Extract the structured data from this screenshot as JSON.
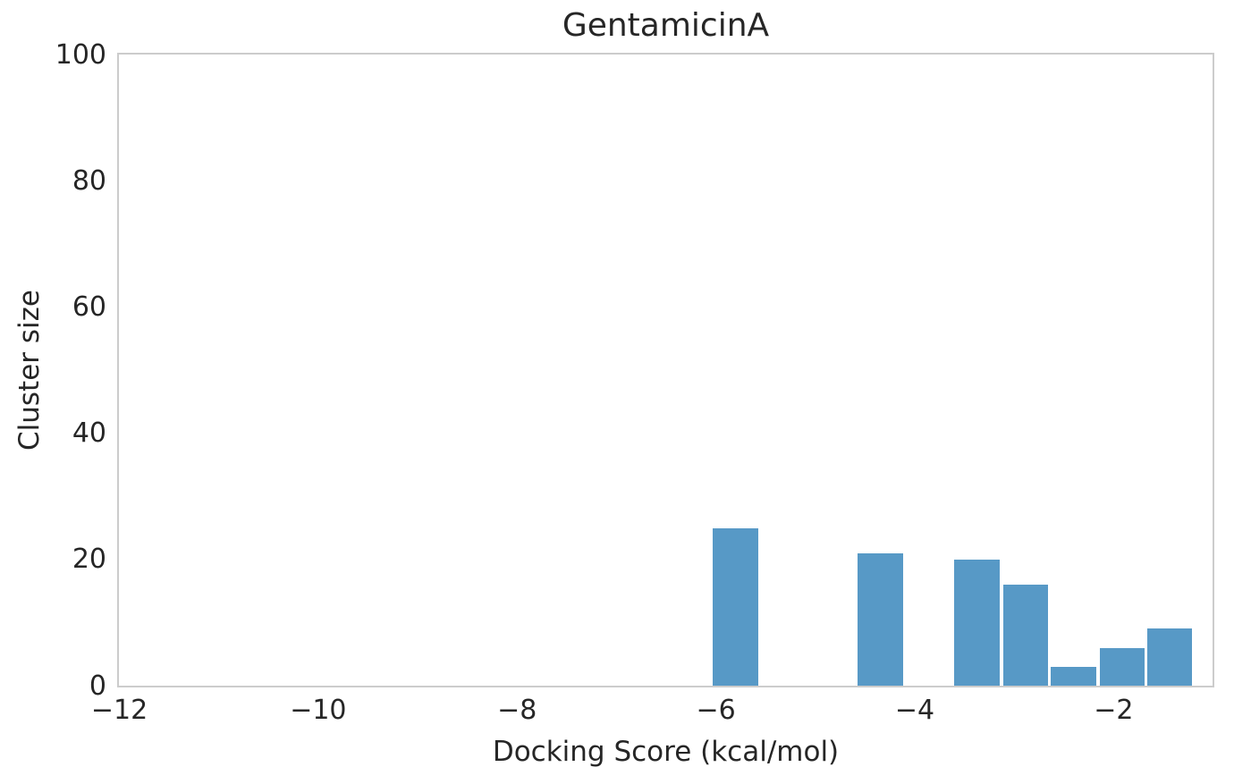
{
  "figure": {
    "title": "GentamicinA",
    "xlabel": "Docking Score (kcal/mol)",
    "ylabel": "Cluster size"
  },
  "chart_data": {
    "type": "bar",
    "subtype": "histogram",
    "title": "GentamicinA",
    "xlabel": "Docking Score (kcal/mol)",
    "ylabel": "Cluster size",
    "xlim": [
      -12,
      -1
    ],
    "ylim": [
      0,
      100
    ],
    "x_ticks": [
      -12,
      -10,
      -8,
      -6,
      -4,
      -2
    ],
    "x_tick_labels": [
      "−12",
      "−10",
      "−8",
      "−6",
      "−4",
      "−2"
    ],
    "y_ticks": [
      0,
      20,
      40,
      60,
      80,
      100
    ],
    "y_tick_labels": [
      "0",
      "20",
      "40",
      "60",
      "80",
      "100"
    ],
    "bin_width": 0.485,
    "bars": [
      {
        "center": -5.8,
        "value": 25
      },
      {
        "center": -4.34,
        "value": 21
      },
      {
        "center": -3.37,
        "value": 20
      },
      {
        "center": -2.88,
        "value": 16
      },
      {
        "center": -2.4,
        "value": 3
      },
      {
        "center": -1.91,
        "value": 6
      },
      {
        "center": -1.43,
        "value": 9
      }
    ],
    "grid": false,
    "legend": null
  },
  "style": {
    "bar_color": "#5799C6",
    "bar_edge_color": "#ffffff",
    "spine_color": "#cccccc",
    "text_color": "#262626",
    "background": "#ffffff"
  }
}
